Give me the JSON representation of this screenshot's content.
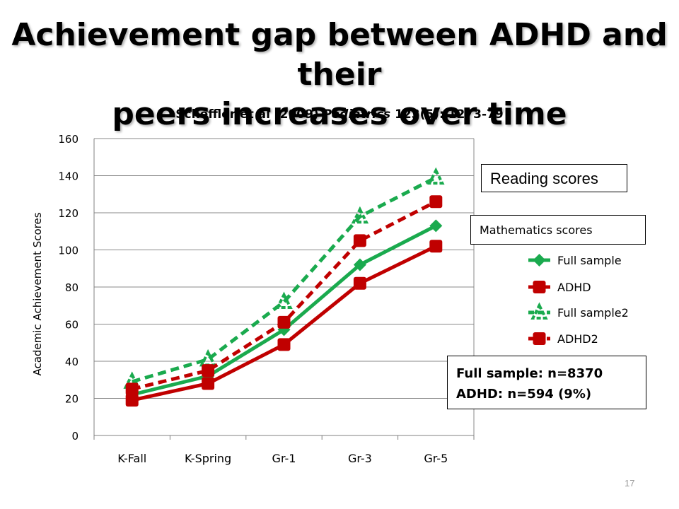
{
  "slide": {
    "title_line1": "Achievement gap between ADHD and their",
    "title_line2": "peers increases over time",
    "citation_prefix": "Scheffler et al (2009) ",
    "citation_journal": "Pediatrics",
    "citation_suffix": " 123(5): 1273-79",
    "reading_label": "Reading scores",
    "math_label": "Mathematics scores",
    "sample_line1": "Full sample: n=8370",
    "sample_line2": "ADHD: n=594 (9%)",
    "page_number": "17"
  },
  "colors": {
    "green": "#1aaa4e",
    "red": "#c00000"
  },
  "chart_data": {
    "type": "line",
    "ylabel": "Academic Achievement Scores",
    "xlabel": "",
    "ylim": [
      0,
      160
    ],
    "yticks": [
      0,
      20,
      40,
      60,
      80,
      100,
      120,
      140,
      160
    ],
    "categories": [
      "K-Fall",
      "K-Spring",
      "Gr-1",
      "Gr-3",
      "Gr-5"
    ],
    "grid": true,
    "legend": "right",
    "series": [
      {
        "name": "Full sample",
        "values": [
          22,
          32,
          57,
          92,
          113
        ],
        "color": "#1aaa4e",
        "dashed": false,
        "marker": "diamond"
      },
      {
        "name": "ADHD",
        "values": [
          19,
          28,
          49,
          82,
          102
        ],
        "color": "#c00000",
        "dashed": false,
        "marker": "square"
      },
      {
        "name": "Full sample2",
        "values": [
          29,
          41,
          72,
          118,
          139
        ],
        "color": "#1aaa4e",
        "dashed": true,
        "marker": "triangle"
      },
      {
        "name": "ADHD2",
        "values": [
          25,
          35,
          61,
          105,
          126
        ],
        "color": "#c00000",
        "dashed": true,
        "marker": "square"
      }
    ]
  }
}
